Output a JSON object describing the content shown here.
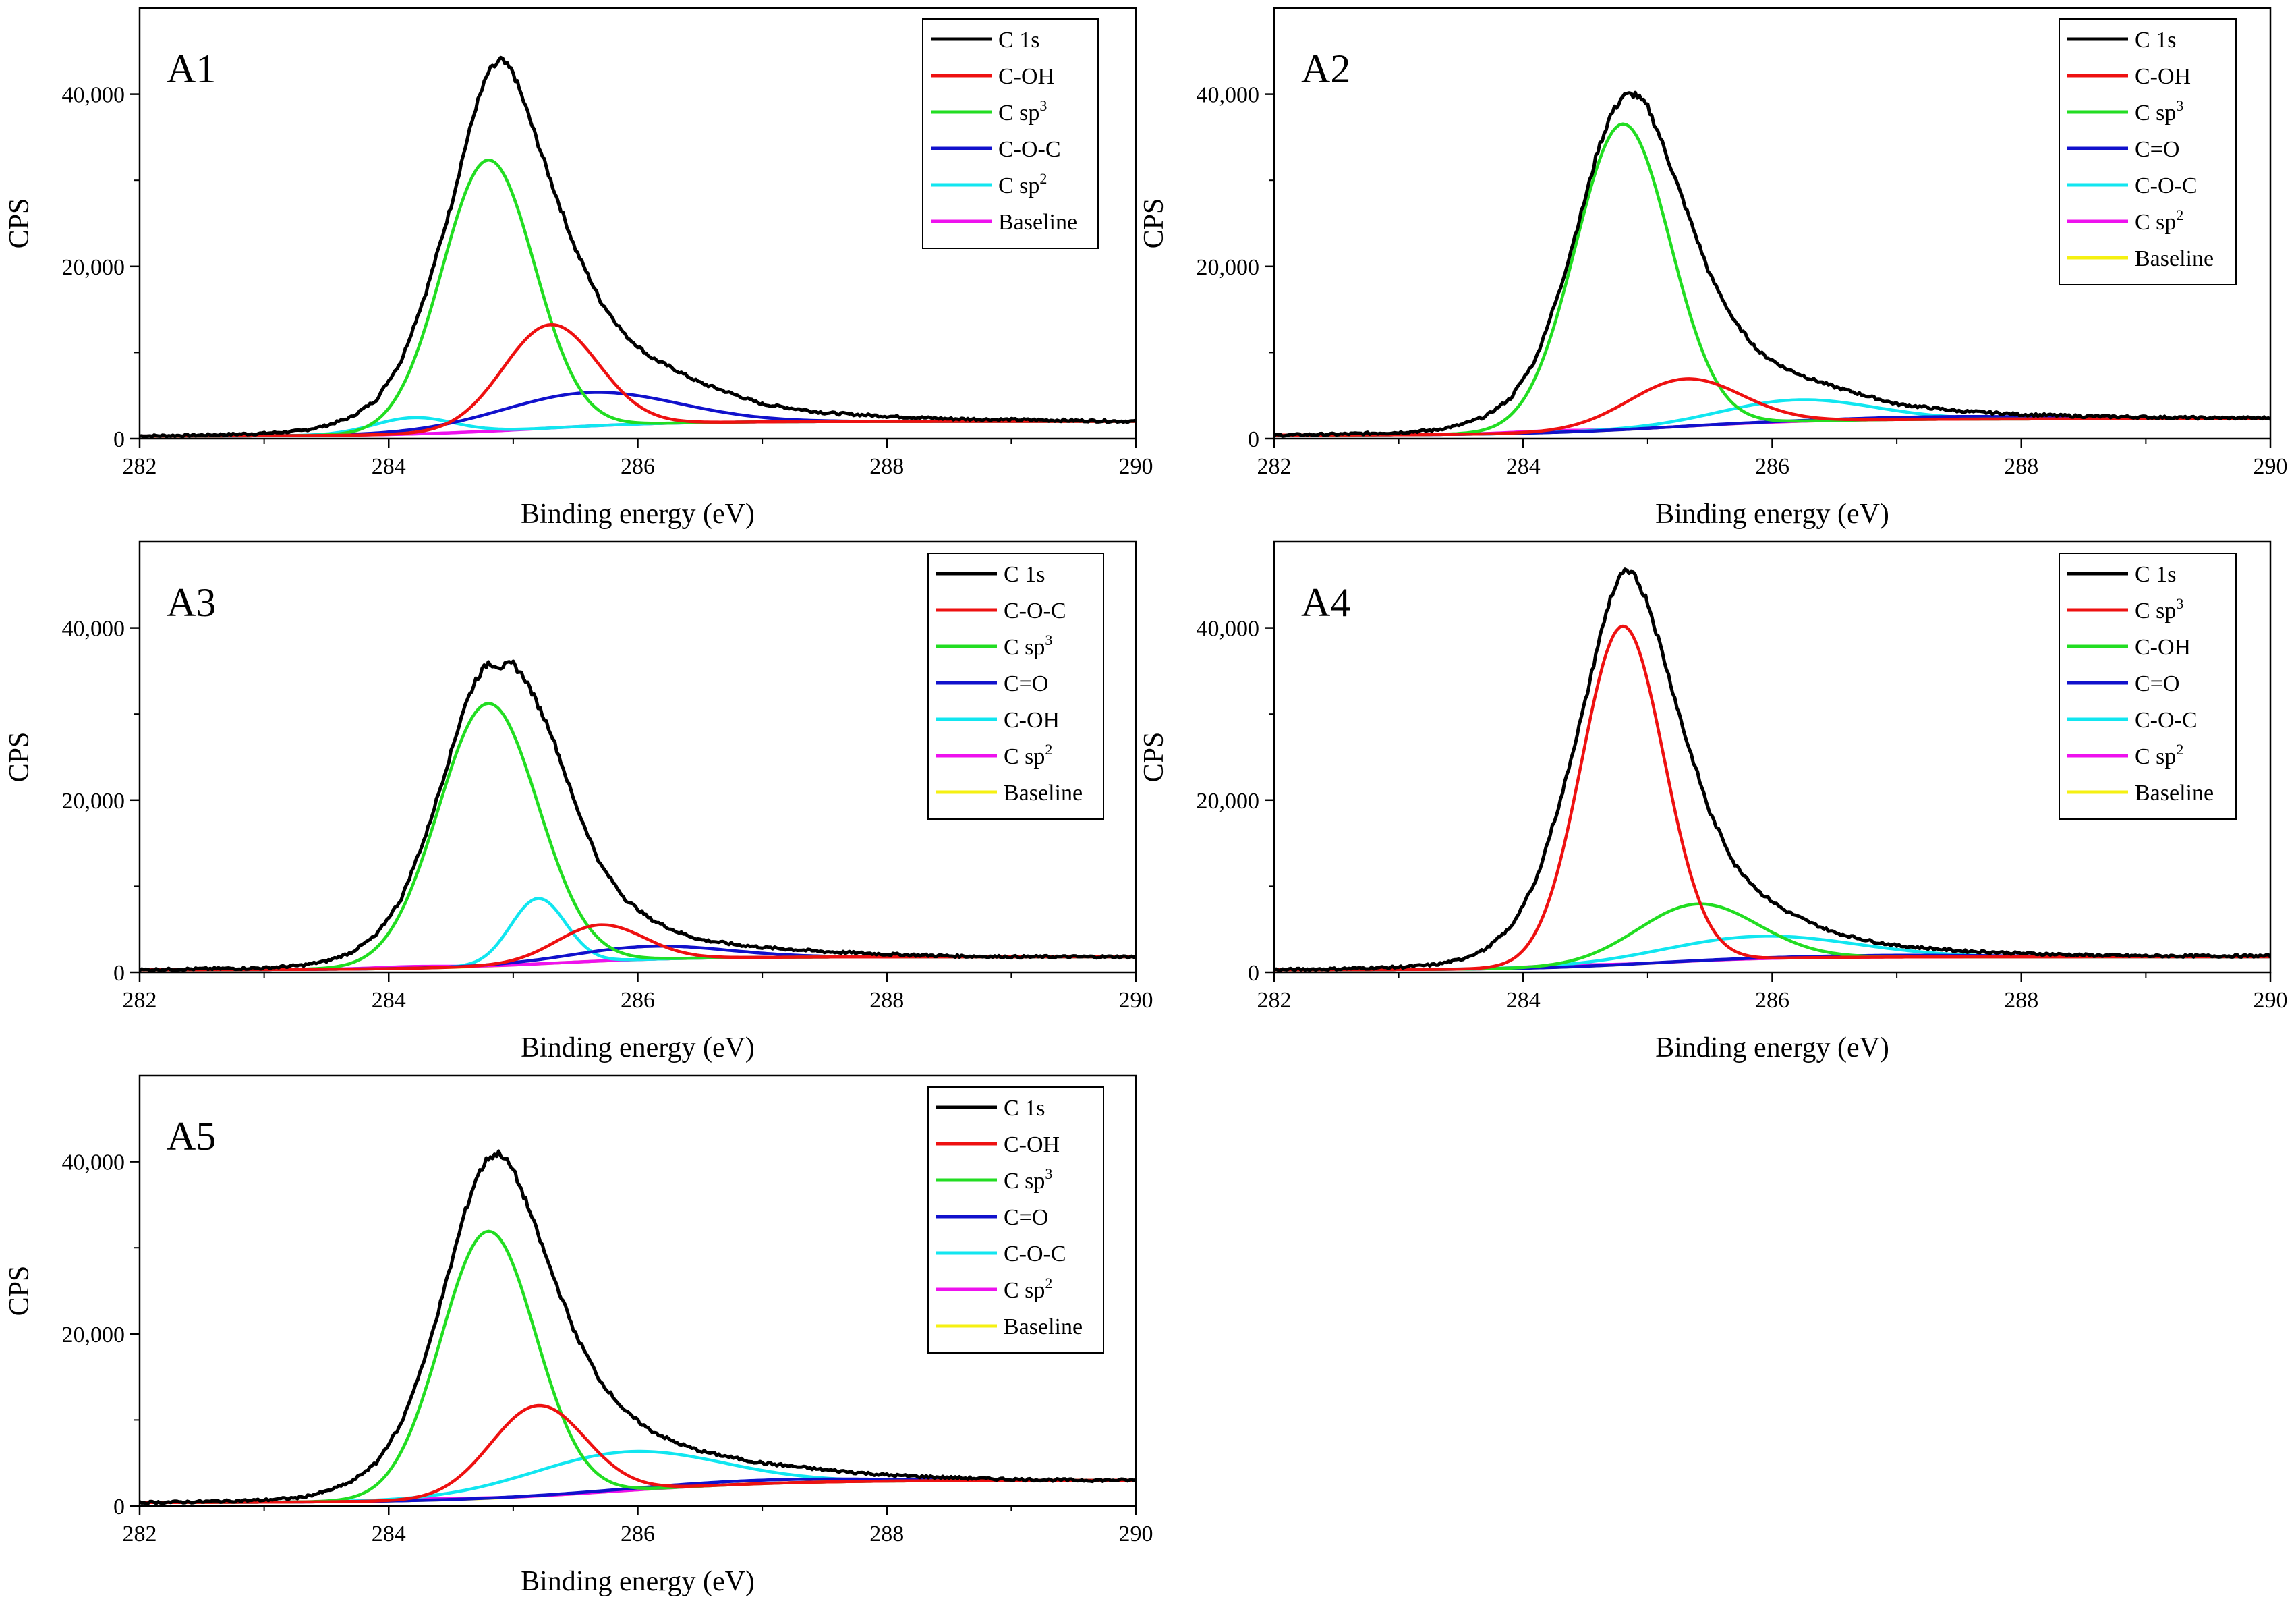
{
  "colors": {
    "black": "#000000",
    "red": "#ee1111",
    "green": "#22dd22",
    "blue": "#1111cc",
    "cyan": "#11e6f0",
    "magenta": "#ee11ee",
    "yellow": "#f5f011"
  },
  "chart_data": [
    {
      "type": "line",
      "panel": "A1",
      "xlabel": "Binding energy (eV)",
      "ylabel": "CPS",
      "xlim": [
        282,
        290
      ],
      "ylim": [
        0,
        50000
      ],
      "x_ticks": [
        "282",
        "284",
        "286",
        "288",
        "290"
      ],
      "y_ticks": [
        "0",
        "20,000",
        "40,000"
      ],
      "legend_position": "top-right",
      "series": [
        {
          "name": "C 1s",
          "base": "C",
          "sup": "",
          "suffix": " 1s",
          "color": "black",
          "noisy": true,
          "x": [
            282,
            282.5,
            283,
            283.3,
            283.5,
            283.7,
            283.9,
            284.1,
            284.3,
            284.5,
            284.6,
            284.7,
            284.8,
            284.9,
            285,
            285.1,
            285.3,
            285.5,
            285.7,
            285.9,
            286.1,
            286.3,
            286.5,
            286.8,
            287,
            287.5,
            288,
            288.5,
            289,
            289.5,
            290
          ],
          "y": [
            300,
            400,
            600,
            900,
            1500,
            2500,
            4500,
            9000,
            17000,
            27000,
            33000,
            38500,
            42500,
            44000,
            42500,
            38500,
            30000,
            22000,
            16000,
            12000,
            9500,
            8000,
            6500,
            5000,
            4000,
            3000,
            2600,
            2300,
            2200,
            2100,
            2000
          ]
        },
        {
          "name": "C-OH",
          "base": "C-OH",
          "sup": "",
          "suffix": "",
          "color": "red",
          "peak": {
            "center": 285.3,
            "amp": 12000,
            "sigma": 0.38
          }
        },
        {
          "name": "C sp3",
          "base": "C sp",
          "sup": "3",
          "suffix": "",
          "color": "green",
          "peak": {
            "center": 284.8,
            "amp": 31500,
            "sigma": 0.37
          }
        },
        {
          "name": "C-O-C",
          "base": "C-O-C",
          "sup": "",
          "suffix": "",
          "color": "blue",
          "peak": {
            "center": 285.6,
            "amp": 3900,
            "sigma": 0.7
          }
        },
        {
          "name": "C sp2",
          "base": "C sp",
          "sup": "2",
          "suffix": "",
          "color": "cyan",
          "peak": {
            "center": 284.2,
            "amp": 1900,
            "sigma": 0.32
          }
        },
        {
          "name": "Baseline",
          "base": "Baseline",
          "sup": "",
          "suffix": "",
          "color": "magenta",
          "baseline": {
            "start": 300,
            "end": 2000,
            "center": 285.2,
            "width": 0.55
          }
        }
      ]
    },
    {
      "type": "line",
      "panel": "A2",
      "xlabel": "Binding energy (eV)",
      "ylabel": "CPS",
      "xlim": [
        282,
        290
      ],
      "ylim": [
        0,
        50000
      ],
      "x_ticks": [
        "282",
        "284",
        "286",
        "288",
        "290"
      ],
      "y_ticks": [
        "0",
        "20,000",
        "40,000"
      ],
      "legend_position": "top-right",
      "series": [
        {
          "name": "C 1s",
          "base": "C",
          "sup": "",
          "suffix": " 1s",
          "color": "black",
          "noisy": true,
          "x": [
            282,
            282.5,
            283,
            283.3,
            283.5,
            283.7,
            283.9,
            284.1,
            284.3,
            284.5,
            284.6,
            284.7,
            284.8,
            284.9,
            285,
            285.1,
            285.3,
            285.5,
            285.7,
            285.9,
            286.1,
            286.3,
            286.5,
            286.8,
            287,
            287.5,
            288,
            288.5,
            289,
            289.5,
            290
          ],
          "y": [
            400,
            500,
            700,
            1000,
            1600,
            2600,
            4700,
            9200,
            17500,
            28000,
            33500,
            37500,
            39800,
            40000,
            38500,
            35000,
            27000,
            19000,
            13500,
            10000,
            8200,
            7000,
            6000,
            4800,
            4000,
            3200,
            2800,
            2600,
            2500,
            2400,
            2400
          ]
        },
        {
          "name": "C-OH",
          "base": "C-OH",
          "sup": "",
          "suffix": "",
          "color": "red",
          "peak": {
            "center": 285.3,
            "amp": 5500,
            "sigma": 0.45
          }
        },
        {
          "name": "C sp3",
          "base": "C sp",
          "sup": "3",
          "suffix": "",
          "color": "green",
          "peak": {
            "center": 284.8,
            "amp": 35500,
            "sigma": 0.38
          }
        },
        {
          "name": "C=O",
          "base": "C=O",
          "sup": "",
          "suffix": "",
          "color": "blue",
          "peak": {
            "center": 287.5,
            "amp": 300,
            "sigma": 0.8
          }
        },
        {
          "name": "C-O-C",
          "base": "C-O-C",
          "sup": "",
          "suffix": "",
          "color": "cyan",
          "peak": {
            "center": 286.2,
            "amp": 2500,
            "sigma": 0.6
          }
        },
        {
          "name": "C sp2",
          "base": "C sp",
          "sup": "2",
          "suffix": "",
          "color": "magenta",
          "peak": {
            "center": 284.2,
            "amp": 200,
            "sigma": 0.3
          }
        },
        {
          "name": "Baseline",
          "base": "Baseline",
          "sup": "",
          "suffix": "",
          "color": "yellow",
          "baseline": {
            "start": 400,
            "end": 2300,
            "center": 285.2,
            "width": 0.6
          }
        }
      ]
    },
    {
      "type": "line",
      "panel": "A3",
      "xlabel": "Binding energy (eV)",
      "ylabel": "CPS",
      "xlim": [
        282,
        290
      ],
      "ylim": [
        0,
        50000
      ],
      "x_ticks": [
        "282",
        "284",
        "286",
        "288",
        "290"
      ],
      "y_ticks": [
        "0",
        "20,000",
        "40,000"
      ],
      "legend_position": "top-right",
      "series": [
        {
          "name": "C 1s",
          "base": "C",
          "sup": "",
          "suffix": " 1s",
          "color": "black",
          "noisy": true,
          "x": [
            282,
            282.5,
            283,
            283.3,
            283.5,
            283.7,
            283.9,
            284.1,
            284.3,
            284.5,
            284.6,
            284.7,
            284.8,
            284.9,
            285,
            285.1,
            285.3,
            285.5,
            285.7,
            285.9,
            286.1,
            286.3,
            286.5,
            286.8,
            287,
            287.5,
            288,
            288.5,
            289,
            289.5,
            290
          ],
          "y": [
            300,
            400,
            500,
            800,
            1300,
            2300,
            4300,
            8500,
            16000,
            25500,
            30500,
            34000,
            36000,
            35500,
            35800,
            34000,
            28000,
            19500,
            12500,
            8500,
            6200,
            4800,
            3800,
            3200,
            2900,
            2400,
            2100,
            1900,
            1800,
            1800,
            1800
          ]
        },
        {
          "name": "C-O-C",
          "base": "C-O-C",
          "sup": "",
          "suffix": "",
          "color": "red",
          "peak": {
            "center": 285.7,
            "amp": 4200,
            "sigma": 0.35
          }
        },
        {
          "name": "C sp3",
          "base": "C sp",
          "sup": "3",
          "suffix": "",
          "color": "green",
          "peak": {
            "center": 284.8,
            "amp": 30500,
            "sigma": 0.4
          }
        },
        {
          "name": "C=O",
          "base": "C=O",
          "sup": "",
          "suffix": "",
          "color": "blue",
          "peak": {
            "center": 286.1,
            "amp": 1500,
            "sigma": 0.6
          }
        },
        {
          "name": "C-OH",
          "base": "C-OH",
          "sup": "",
          "suffix": "",
          "color": "cyan",
          "peak": {
            "center": 285.2,
            "amp": 7600,
            "sigma": 0.22
          }
        },
        {
          "name": "C sp2",
          "base": "C sp",
          "sup": "2",
          "suffix": "",
          "color": "magenta",
          "peak": {
            "center": 284.2,
            "amp": 200,
            "sigma": 0.3
          }
        },
        {
          "name": "Baseline",
          "base": "Baseline",
          "sup": "",
          "suffix": "",
          "color": "yellow",
          "baseline": {
            "start": 300,
            "end": 1800,
            "center": 285.3,
            "width": 0.55
          }
        }
      ]
    },
    {
      "type": "line",
      "panel": "A4",
      "xlabel": "Binding energy (eV)",
      "ylabel": "CPS",
      "xlim": [
        282,
        290
      ],
      "ylim": [
        0,
        50000
      ],
      "x_ticks": [
        "282",
        "284",
        "286",
        "288",
        "290"
      ],
      "y_ticks": [
        "0",
        "20,000",
        "40,000"
      ],
      "legend_position": "top-right",
      "series": [
        {
          "name": "C 1s",
          "base": "C",
          "sup": "",
          "suffix": " 1s",
          "color": "black",
          "noisy": true,
          "x": [
            282,
            282.5,
            283,
            283.3,
            283.5,
            283.7,
            283.9,
            284.1,
            284.3,
            284.5,
            284.6,
            284.7,
            284.8,
            284.9,
            285,
            285.1,
            285.3,
            285.5,
            285.7,
            285.9,
            286.1,
            286.3,
            286.5,
            286.8,
            287,
            287.5,
            288,
            288.5,
            289,
            289.5,
            290
          ],
          "y": [
            300,
            400,
            600,
            900,
            1500,
            2700,
            5200,
            10500,
            20000,
            31500,
            38000,
            43500,
            46500,
            46000,
            43000,
            38000,
            27500,
            18500,
            12500,
            9300,
            7200,
            5800,
            4600,
            3600,
            3100,
            2500,
            2200,
            2000,
            1900,
            1900,
            1900
          ]
        },
        {
          "name": "C sp3",
          "base": "C sp",
          "sup": "3",
          "suffix": "",
          "color": "red",
          "peak": {
            "center": 284.8,
            "amp": 39300,
            "sigma": 0.33
          }
        },
        {
          "name": "C-OH",
          "base": "C-OH",
          "sup": "",
          "suffix": "",
          "color": "green",
          "peak": {
            "center": 285.4,
            "amp": 6600,
            "sigma": 0.48
          }
        },
        {
          "name": "C=O",
          "base": "C=O",
          "sup": "",
          "suffix": "",
          "color": "blue",
          "peak": {
            "center": 287,
            "amp": 200,
            "sigma": 0.8
          }
        },
        {
          "name": "C-O-C",
          "base": "C-O-C",
          "sup": "",
          "suffix": "",
          "color": "cyan",
          "peak": {
            "center": 285.9,
            "amp": 2600,
            "sigma": 0.75
          }
        },
        {
          "name": "C sp2",
          "base": "C sp",
          "sup": "2",
          "suffix": "",
          "color": "magenta",
          "peak": {
            "center": 284.3,
            "amp": 200,
            "sigma": 0.3
          }
        },
        {
          "name": "Baseline",
          "base": "Baseline",
          "sup": "",
          "suffix": "",
          "color": "yellow",
          "baseline": {
            "start": 300,
            "end": 1800,
            "center": 285.0,
            "width": 0.5
          }
        }
      ]
    },
    {
      "type": "line",
      "panel": "A5",
      "xlabel": "Binding energy (eV)",
      "ylabel": "CPS",
      "xlim": [
        282,
        290
      ],
      "ylim": [
        0,
        50000
      ],
      "x_ticks": [
        "282",
        "284",
        "286",
        "288",
        "290"
      ],
      "y_ticks": [
        "0",
        "20,000",
        "40,000"
      ],
      "legend_position": "top-right",
      "series": [
        {
          "name": "C 1s",
          "base": "C",
          "sup": "",
          "suffix": " 1s",
          "color": "black",
          "noisy": true,
          "x": [
            282,
            282.5,
            283,
            283.3,
            283.5,
            283.7,
            283.9,
            284.1,
            284.3,
            284.5,
            284.6,
            284.7,
            284.8,
            284.9,
            285,
            285.1,
            285.3,
            285.5,
            285.7,
            285.9,
            286.1,
            286.3,
            286.5,
            286.8,
            287,
            287.5,
            288,
            288.5,
            289,
            289.5,
            290
          ],
          "y": [
            400,
            500,
            700,
            1000,
            1700,
            2800,
            5000,
            9500,
            17500,
            28000,
            33500,
            38000,
            40500,
            41000,
            39000,
            35500,
            27500,
            20000,
            14500,
            11000,
            8800,
            7400,
            6400,
            5500,
            5000,
            4200,
            3600,
            3300,
            3100,
            3000,
            3000
          ]
        },
        {
          "name": "C-OH",
          "base": "C-OH",
          "sup": "",
          "suffix": "",
          "color": "red",
          "peak": {
            "center": 285.2,
            "amp": 10500,
            "sigma": 0.38
          }
        },
        {
          "name": "C sp3",
          "base": "C sp",
          "sup": "3",
          "suffix": "",
          "color": "green",
          "peak": {
            "center": 284.8,
            "amp": 31000,
            "sigma": 0.38
          }
        },
        {
          "name": "C=O",
          "base": "C=O",
          "sup": "",
          "suffix": "",
          "color": "blue",
          "peak": {
            "center": 287.0,
            "amp": 400,
            "sigma": 0.9
          }
        },
        {
          "name": "C-O-C",
          "base": "C-O-C",
          "sup": "",
          "suffix": "",
          "color": "cyan",
          "peak": {
            "center": 285.9,
            "amp": 4500,
            "sigma": 0.75
          }
        },
        {
          "name": "C sp2",
          "base": "C sp",
          "sup": "2",
          "suffix": "",
          "color": "magenta",
          "peak": {
            "center": 284.3,
            "amp": 200,
            "sigma": 0.3
          }
        },
        {
          "name": "Baseline",
          "base": "Baseline",
          "sup": "",
          "suffix": "",
          "color": "yellow",
          "baseline": {
            "start": 400,
            "end": 3000,
            "center": 285.8,
            "width": 0.7
          }
        }
      ]
    }
  ]
}
